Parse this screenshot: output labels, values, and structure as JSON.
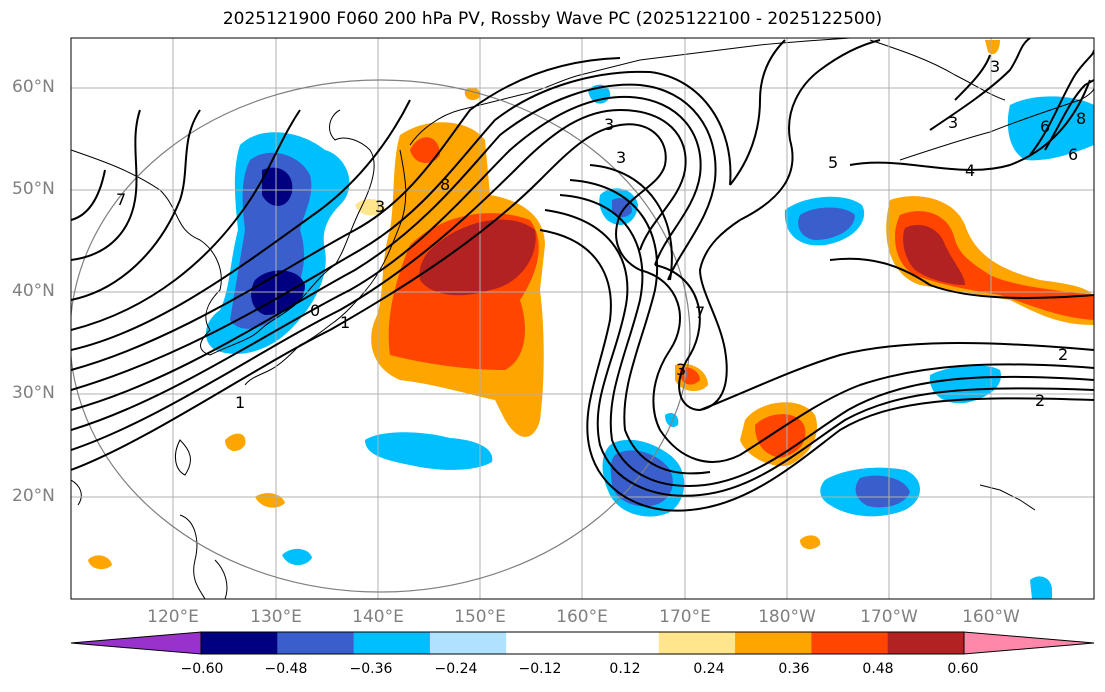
{
  "title": "2025121900 F060 200 hPa PV, Rossby Wave PC (2025122100 - 2025122500)",
  "map": {
    "region": "North Pacific",
    "lat_labels": [
      "60°N",
      "50°N",
      "40°N",
      "30°N",
      "20°N"
    ],
    "lon_labels": [
      "120°E",
      "130°E",
      "140°E",
      "150°E",
      "160°E",
      "170°E",
      "180°W",
      "170°W",
      "160°W"
    ],
    "contour_labels": [
      "3",
      "3",
      "4",
      "5",
      "6",
      "7",
      "8",
      "1",
      "0",
      "1",
      "2",
      "3",
      "7",
      "3",
      "2",
      "3",
      "3",
      "6",
      "8"
    ],
    "shading": [
      {
        "name": "strong-positive-anomaly",
        "color": "#b22222"
      },
      {
        "name": "positive-anomaly",
        "color": "#ff4500"
      },
      {
        "name": "weak-positive-anomaly",
        "color": "#ffa500"
      },
      {
        "name": "negative-anomaly",
        "color": "#00bfff"
      },
      {
        "name": "strong-negative-anomaly",
        "color": "#3a5fcd"
      },
      {
        "name": "very-strong-negative-anomaly",
        "color": "#000080"
      }
    ]
  },
  "colorbar": {
    "ticks": [
      "−0.60",
      "−0.48",
      "−0.36",
      "−0.24",
      "−0.12",
      "0.12",
      "0.24",
      "0.36",
      "0.48",
      "0.60"
    ],
    "colors": [
      "#9932cc",
      "#000080",
      "#3a5fcd",
      "#00bfff",
      "#00bfff",
      "#b0e2ff",
      "#ffffff",
      "#ffe68c",
      "#ffa500",
      "#ff4500",
      "#b22222",
      "#ff88aa"
    ]
  }
}
